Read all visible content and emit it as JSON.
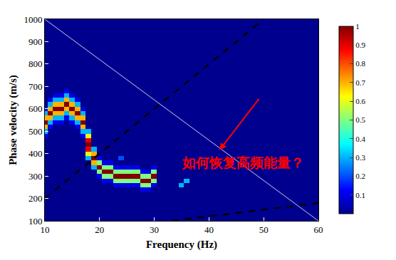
{
  "chart_data": {
    "type": "heatmap",
    "x_label": "Frequency (Hz)",
    "y_label": "Phase velocity (m/s)",
    "xlim": [
      10,
      60
    ],
    "xticks": [
      10,
      20,
      30,
      40,
      50,
      60
    ],
    "ylim": [
      100,
      1000
    ],
    "yticks": [
      100,
      200,
      300,
      400,
      500,
      600,
      700,
      800,
      900,
      1000
    ],
    "colorbar_range": [
      0,
      1
    ],
    "colorbar_ticks": [
      0.1,
      0.2,
      0.3,
      0.4,
      0.5,
      0.6,
      0.7,
      0.8,
      0.9,
      1
    ],
    "cells": [
      [
        10,
        480,
        0.1
      ],
      [
        10,
        500,
        0.3
      ],
      [
        10,
        520,
        0.7
      ],
      [
        10,
        540,
        1
      ],
      [
        10,
        560,
        0.7
      ],
      [
        10,
        580,
        0.3
      ],
      [
        10,
        600,
        0.1
      ],
      [
        11,
        520,
        0.1
      ],
      [
        11,
        540,
        0.3
      ],
      [
        11,
        560,
        0.7
      ],
      [
        11,
        580,
        1
      ],
      [
        11,
        600,
        0.7
      ],
      [
        11,
        620,
        0.3
      ],
      [
        11,
        640,
        0.1
      ],
      [
        12,
        540,
        0.1
      ],
      [
        12,
        560,
        0.3
      ],
      [
        12,
        580,
        0.7
      ],
      [
        12,
        600,
        1
      ],
      [
        12,
        620,
        0.7
      ],
      [
        12,
        640,
        0.3
      ],
      [
        12,
        660,
        0.1
      ],
      [
        13,
        540,
        0.1
      ],
      [
        13,
        560,
        0.3
      ],
      [
        13,
        580,
        0.7
      ],
      [
        13,
        600,
        1
      ],
      [
        13,
        620,
        0.7
      ],
      [
        13,
        640,
        0.3
      ],
      [
        13,
        660,
        0.1
      ],
      [
        14,
        560,
        0.1
      ],
      [
        14,
        580,
        0.3
      ],
      [
        14,
        600,
        0.7
      ],
      [
        14,
        620,
        1
      ],
      [
        14,
        640,
        0.7
      ],
      [
        14,
        660,
        0.3
      ],
      [
        14,
        680,
        0.1
      ],
      [
        15,
        540,
        0.1
      ],
      [
        15,
        560,
        0.3
      ],
      [
        15,
        580,
        0.7
      ],
      [
        15,
        600,
        1
      ],
      [
        15,
        620,
        0.7
      ],
      [
        15,
        640,
        0.3
      ],
      [
        15,
        660,
        0.1
      ],
      [
        16,
        520,
        0.1
      ],
      [
        16,
        540,
        0.3
      ],
      [
        16,
        560,
        0.7
      ],
      [
        16,
        580,
        1
      ],
      [
        16,
        600,
        0.7
      ],
      [
        16,
        620,
        0.3
      ],
      [
        16,
        640,
        0.1
      ],
      [
        17,
        480,
        0.1
      ],
      [
        17,
        500,
        0.3
      ],
      [
        17,
        520,
        0.7
      ],
      [
        17,
        540,
        1
      ],
      [
        17,
        560,
        0.7
      ],
      [
        17,
        580,
        0.3
      ],
      [
        17,
        600,
        0.1
      ],
      [
        18,
        380,
        0.3
      ],
      [
        18,
        400,
        0.6
      ],
      [
        18,
        420,
        0.9
      ],
      [
        18,
        440,
        1
      ],
      [
        18,
        460,
        0.9
      ],
      [
        18,
        480,
        0.6
      ],
      [
        18,
        500,
        0.3
      ],
      [
        19,
        340,
        0.3
      ],
      [
        19,
        360,
        0.7
      ],
      [
        19,
        380,
        1
      ],
      [
        19,
        400,
        0.7
      ],
      [
        19,
        420,
        0.3
      ],
      [
        20,
        300,
        0.1
      ],
      [
        20,
        320,
        0.5
      ],
      [
        20,
        340,
        1
      ],
      [
        20,
        360,
        0.5
      ],
      [
        20,
        380,
        0.1
      ],
      [
        21,
        280,
        0.1
      ],
      [
        21,
        300,
        0.5
      ],
      [
        21,
        320,
        1
      ],
      [
        21,
        340,
        0.5
      ],
      [
        21,
        360,
        0.1
      ],
      [
        22,
        280,
        0.1
      ],
      [
        22,
        300,
        0.5
      ],
      [
        22,
        320,
        1
      ],
      [
        22,
        340,
        0.5
      ],
      [
        22,
        360,
        0.1
      ],
      [
        23,
        260,
        0.1
      ],
      [
        23,
        280,
        0.5
      ],
      [
        23,
        300,
        1
      ],
      [
        23,
        320,
        0.5
      ],
      [
        23,
        340,
        0.1
      ],
      [
        24,
        260,
        0.1
      ],
      [
        24,
        280,
        0.5
      ],
      [
        24,
        300,
        1
      ],
      [
        24,
        320,
        0.5
      ],
      [
        24,
        340,
        0.1
      ],
      [
        24,
        380,
        0.2
      ],
      [
        25,
        260,
        0.1
      ],
      [
        25,
        280,
        0.5
      ],
      [
        25,
        300,
        1
      ],
      [
        25,
        320,
        0.5
      ],
      [
        25,
        340,
        0.1
      ],
      [
        26,
        260,
        0.1
      ],
      [
        26,
        280,
        0.5
      ],
      [
        26,
        300,
        1
      ],
      [
        26,
        320,
        0.5
      ],
      [
        26,
        340,
        0.1
      ],
      [
        27,
        260,
        0.1
      ],
      [
        27,
        280,
        0.5
      ],
      [
        27,
        300,
        1
      ],
      [
        27,
        320,
        0.5
      ],
      [
        27,
        340,
        0.1
      ],
      [
        28,
        240,
        0.1
      ],
      [
        28,
        260,
        0.5
      ],
      [
        28,
        280,
        1
      ],
      [
        28,
        300,
        0.5
      ],
      [
        28,
        320,
        0.1
      ],
      [
        29,
        240,
        0.1
      ],
      [
        29,
        260,
        0.5
      ],
      [
        29,
        280,
        1
      ],
      [
        29,
        300,
        0.5
      ],
      [
        29,
        320,
        0.1
      ],
      [
        30,
        260,
        0.1
      ],
      [
        30,
        280,
        0.5
      ],
      [
        30,
        300,
        1
      ],
      [
        30,
        320,
        0.5
      ],
      [
        30,
        340,
        0.1
      ],
      [
        35,
        260,
        0.3
      ],
      [
        36,
        280,
        0.3
      ]
    ],
    "lines": [
      {
        "x": [
          10,
          50
        ],
        "y": [
          200,
          1000
        ],
        "color": "black",
        "line_style": "dash"
      },
      {
        "x": [
          33.3,
          60
        ],
        "y": [
          100,
          180
        ],
        "color": "black",
        "line_style": "dash"
      },
      {
        "x": [
          10,
          60
        ],
        "y": [
          1000,
          100
        ],
        "color": "white",
        "line_style": "solid"
      }
    ],
    "annotation": {
      "text": "如何恢复高频能量？",
      "x": 46.2,
      "y": 360,
      "color": "red"
    },
    "arrow": {
      "x": 41.9,
      "y": 415,
      "ax": 49.3,
      "ay": 650,
      "color": "red"
    }
  }
}
